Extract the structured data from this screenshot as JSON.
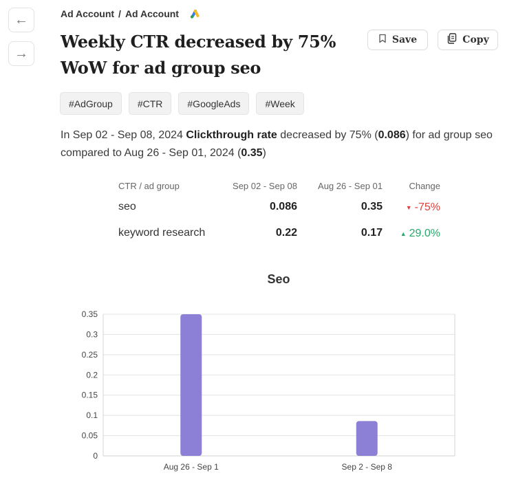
{
  "nav": {
    "back_icon": "←",
    "forward_icon": "→"
  },
  "breadcrumb": {
    "parts": [
      "Ad Account",
      "Ad Account"
    ],
    "separator": "/"
  },
  "title": "Weekly CTR decreased by 75% WoW for ad group seo",
  "actions": {
    "save_label": "Save",
    "copy_label": "Copy"
  },
  "tags": [
    "#AdGroup",
    "#CTR",
    "#GoogleAds",
    "#Week"
  ],
  "summary": {
    "prefix": "In Sep 02 - Sep 08, 2024 ",
    "metric": "Clickthrough rate",
    "middle": " decreased by 75% (",
    "current": "0.086",
    "middle2": ") for ad group seo compared to Aug 26 - Sep 01, 2024 (",
    "previous": "0.35",
    "suffix": ")"
  },
  "table": {
    "headers": [
      "CTR / ad group",
      "Sep 02 - Sep 08",
      "Aug 26 - Sep 01",
      "Change"
    ],
    "rows": [
      {
        "name": "seo",
        "current": "0.086",
        "previous": "0.35",
        "change": "-75%",
        "direction": "down"
      },
      {
        "name": "keyword research",
        "current": "0.22",
        "previous": "0.17",
        "change": "29.0%",
        "direction": "up"
      }
    ]
  },
  "colors": {
    "bar": "#8b7fd6",
    "negative": "#e2403a",
    "positive": "#2aa86a"
  },
  "chart_data": {
    "type": "bar",
    "title": "Seo",
    "categories": [
      "Aug 26 - Sep 1",
      "Sep 2 - Sep 8"
    ],
    "values": [
      0.35,
      0.086
    ],
    "ylim": [
      0,
      0.35
    ],
    "yticks": [
      0,
      0.05,
      0.1,
      0.15,
      0.2,
      0.25,
      0.3,
      0.35
    ],
    "ytick_labels": [
      "0",
      "0.05",
      "0.1",
      "0.15",
      "0.2",
      "0.25",
      "0.3",
      "0.35"
    ],
    "grid": true
  }
}
